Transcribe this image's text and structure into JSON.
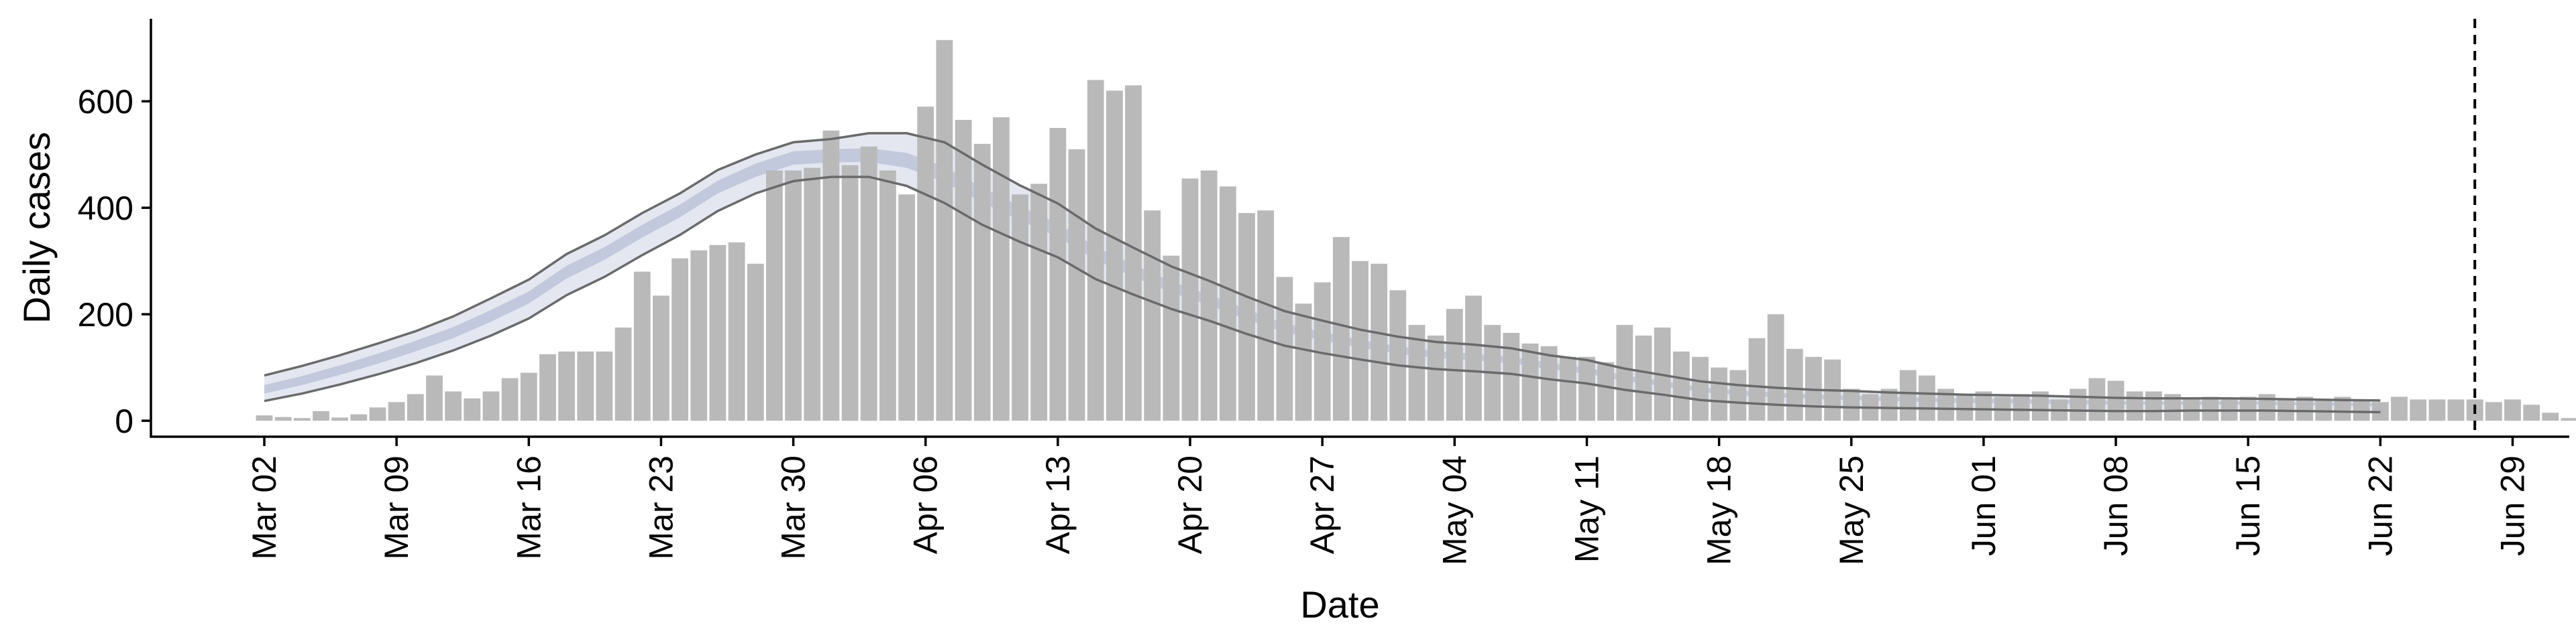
{
  "chart_data": {
    "type": "bar",
    "title": "",
    "xlabel": "Date",
    "ylabel": "Daily cases",
    "x_start": "2020-03-02",
    "x_ticks": [
      "Mar 02",
      "Mar 09",
      "Mar 16",
      "Mar 23",
      "Mar 30",
      "Apr 06",
      "Apr 13",
      "Apr 20",
      "Apr 27",
      "May 04",
      "May 11",
      "May 18",
      "May 25",
      "Jun 01",
      "Jun 08",
      "Jun 15",
      "Jun 22",
      "Jun 29"
    ],
    "y_ticks": [
      "0",
      "200",
      "400",
      "600"
    ],
    "ylim": [
      -30,
      755
    ],
    "xlim": [
      "2020-02-25",
      "2020-07-02"
    ],
    "vline_date": "2020-06-27",
    "grid": false,
    "legend": "none",
    "colors": {
      "bars": "#b9b9b9",
      "band_outer": "#e4e7f0",
      "band_inner": "#c2c9dc",
      "band_lines": "#6a6a6a",
      "vline": "#000000"
    },
    "series": [
      {
        "type": "bar",
        "values": [
          10,
          7,
          5,
          18,
          6,
          12,
          25,
          35,
          50,
          85,
          55,
          42,
          55,
          80,
          90,
          125,
          130,
          130,
          130,
          175,
          280,
          235,
          305,
          320,
          330,
          335,
          295,
          470,
          470,
          475,
          545,
          480,
          515,
          470,
          425,
          590,
          715,
          565,
          520,
          570,
          425,
          445,
          550,
          510,
          640,
          620,
          630,
          395,
          310,
          455,
          470,
          440,
          390,
          395,
          270,
          220,
          260,
          345,
          300,
          295,
          245,
          180,
          160,
          210,
          235,
          180,
          165,
          145,
          140,
          120,
          120,
          110,
          180,
          160,
          175,
          130,
          120,
          100,
          95,
          155,
          200,
          135,
          120,
          115,
          60,
          50,
          60,
          95,
          85,
          60,
          50,
          55,
          45,
          50,
          55,
          40,
          60,
          80,
          75,
          55,
          55,
          50,
          40,
          45,
          40,
          45,
          50,
          40,
          45,
          40,
          45,
          40,
          35,
          45,
          40,
          40,
          40,
          40,
          35,
          40,
          30,
          15,
          5
        ]
      },
      {
        "type": "band",
        "name": "",
        "upper": [
          85,
          103,
          123,
          145,
          168,
          196,
          230,
          265,
          313,
          348,
          390,
          427,
          471,
          500,
          523,
          529,
          540,
          540,
          523,
          481,
          442,
          408,
          361,
          325,
          290,
          263,
          233,
          206,
          188,
          171,
          158,
          148,
          143,
          136,
          123,
          114,
          98,
          86,
          74,
          67,
          62,
          58,
          56,
          53,
          51,
          49,
          48,
          47,
          45,
          43,
          42,
          42,
          42,
          41,
          40,
          39,
          38
        ],
        "inner_upper": [
          67,
          84,
          104,
          126,
          150,
          176,
          208,
          243,
          291,
          326,
          368,
          406,
          451,
          483,
          506,
          510,
          512,
          503,
          477,
          438,
          403,
          371,
          327,
          293,
          262,
          237,
          209,
          183,
          167,
          152,
          140,
          131,
          126,
          120,
          109,
          100,
          85,
          75,
          63,
          57,
          53,
          49,
          47,
          45,
          43,
          42,
          41,
          40,
          39,
          37,
          36,
          37,
          37,
          36,
          35,
          34,
          33
        ],
        "inner_lower": [
          51,
          67,
          86,
          107,
          130,
          155,
          186,
          220,
          267,
          302,
          344,
          382,
          427,
          458,
          481,
          485,
          486,
          475,
          448,
          410,
          376,
          345,
          302,
          270,
          241,
          217,
          190,
          166,
          151,
          137,
          126,
          118,
          113,
          108,
          97,
          88,
          75,
          65,
          54,
          48,
          44,
          41,
          39,
          37,
          35,
          34,
          33,
          32,
          31,
          30,
          30,
          30,
          30,
          30,
          29,
          28,
          27
        ],
        "lower": [
          37,
          51,
          68,
          87,
          108,
          132,
          160,
          192,
          236,
          270,
          311,
          349,
          394,
          427,
          450,
          458,
          458,
          441,
          409,
          368,
          336,
          307,
          266,
          237,
          210,
          188,
          163,
          141,
          127,
          115,
          104,
          97,
          93,
          88,
          78,
          70,
          58,
          49,
          39,
          34,
          30,
          27,
          25,
          24,
          23,
          22,
          21,
          20,
          19,
          18,
          18,
          19,
          19,
          19,
          18,
          17,
          16
        ]
      }
    ]
  }
}
